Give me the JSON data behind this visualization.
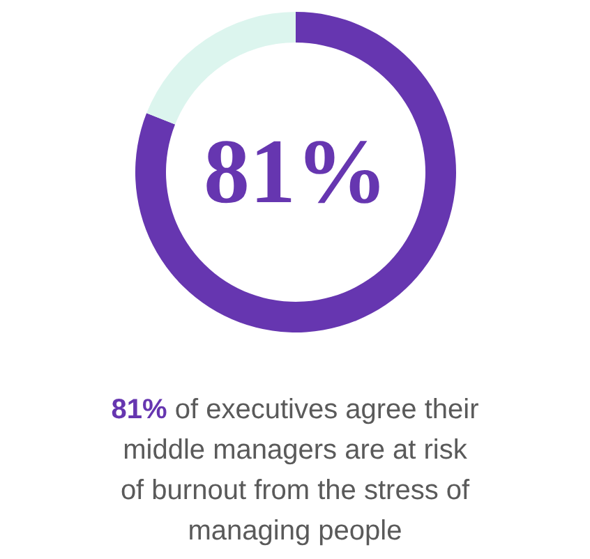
{
  "chart_data": {
    "type": "donut",
    "categories": [
      null,
      null
    ],
    "values": [
      81,
      19
    ],
    "colors": [
      "#6636b0",
      "#dcf5ee"
    ],
    "value_labels": [
      "81%",
      null
    ],
    "annotations": [
      "81% of executives agree their middle managers are at risk of burnout from the stress of managing people"
    ]
  }
}
